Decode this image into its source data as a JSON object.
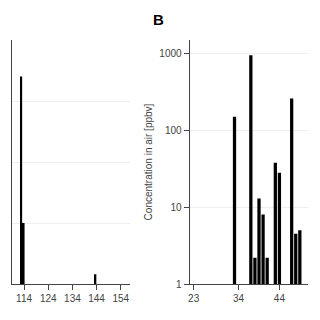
{
  "chart_data": [
    {
      "type": "bar",
      "x": [
        112.8,
        113.8,
        143.5
      ],
      "values": [
        0.85,
        0.25,
        0.04
      ],
      "color": "#000000",
      "xlim": [
        109,
        158
      ],
      "xticks": [
        114,
        124,
        134,
        144,
        154
      ],
      "ylim": [
        0,
        1.0
      ],
      "yticks": [
        0.25,
        0.5,
        0.75
      ],
      "grid": true,
      "tick_labels": "x"
    },
    {
      "type": "bar",
      "title": "B",
      "ylabel": "Concentration in air [ppbv]",
      "x": [
        33,
        37,
        38,
        39,
        40,
        41,
        43,
        44,
        47,
        48,
        49
      ],
      "values": [
        150,
        950,
        2.2,
        13,
        8,
        2.2,
        38,
        28,
        260,
        4.5,
        5.0
      ],
      "color": "#000000",
      "log": "y",
      "xlim": [
        22,
        51
      ],
      "xticks": [
        23,
        34,
        44
      ],
      "ylim": [
        1,
        1500
      ],
      "yticks": [
        1,
        10,
        100,
        1000
      ],
      "grid": true
    }
  ]
}
